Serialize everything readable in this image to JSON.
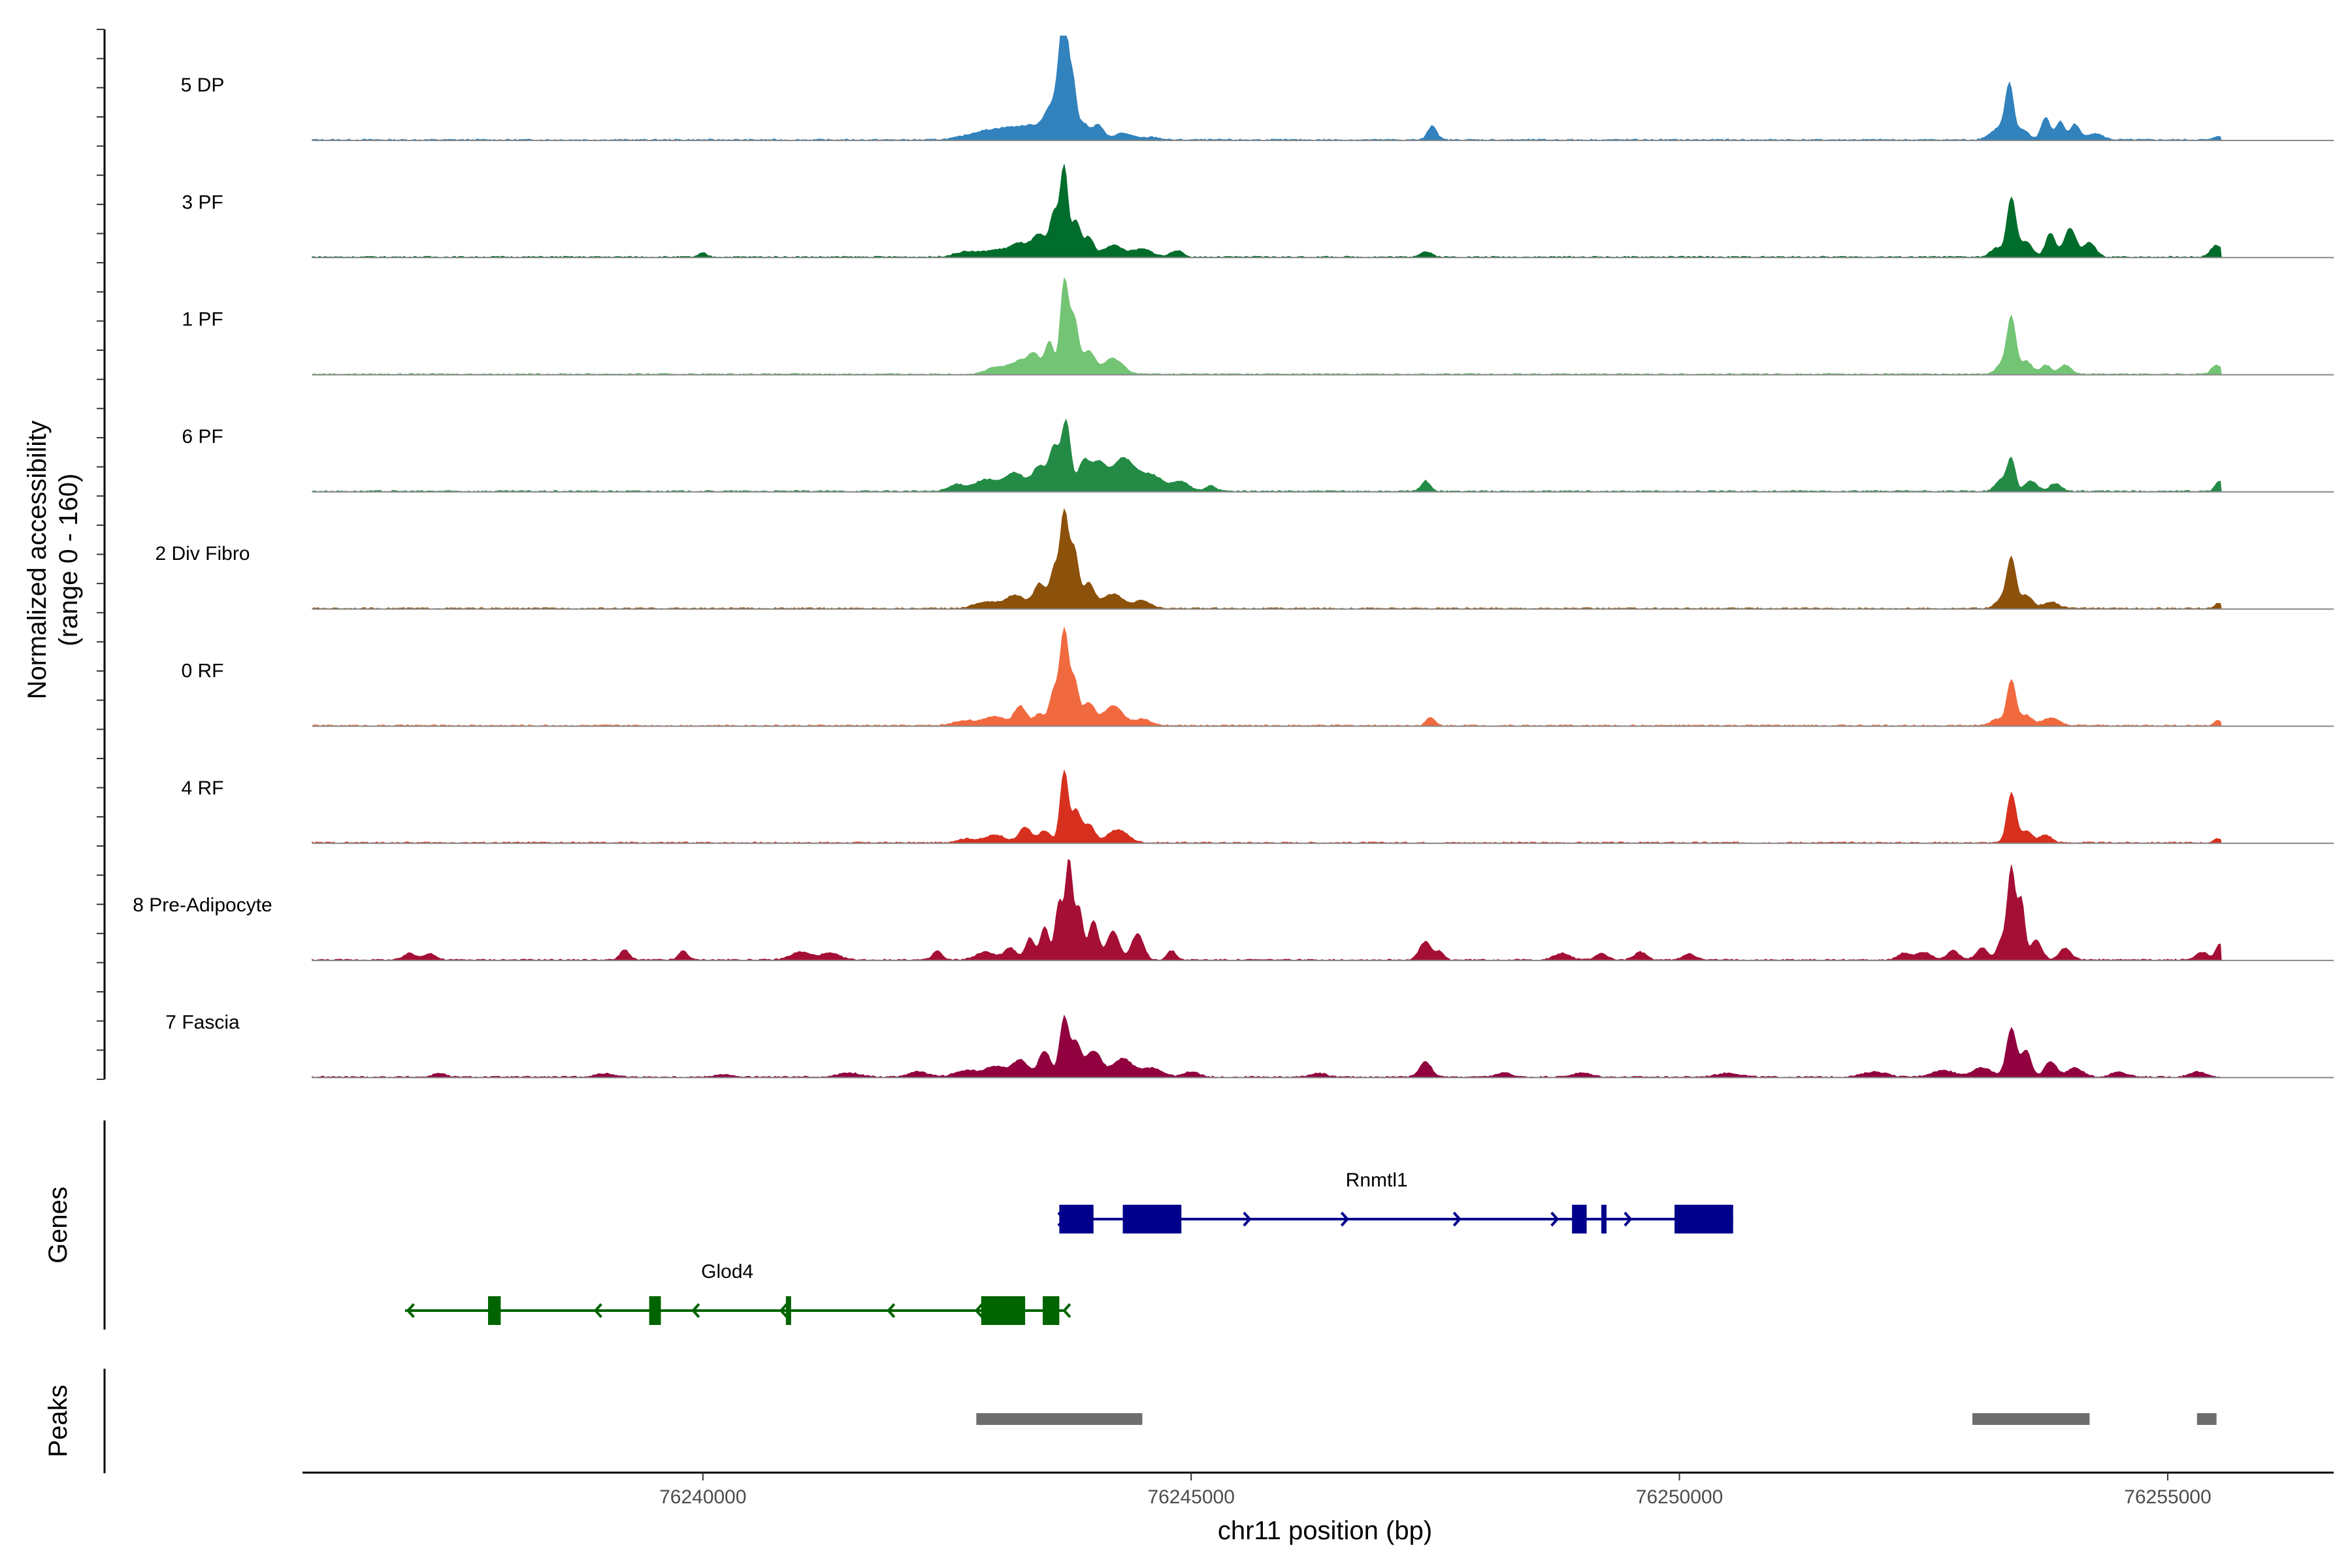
{
  "chart_data": {
    "type": "area",
    "title": "",
    "ylabel_lines": [
      "Normalized accessibility",
      "(range 0 - 160)"
    ],
    "y_range": [
      0,
      160
    ],
    "xlabel": "chr11 position (bp)",
    "x_range": [
      76235900,
      76256700
    ],
    "x_ticks": [
      76240000,
      76245000,
      76250000,
      76255000
    ],
    "x_tick_labels": [
      "76240000",
      "76245000",
      "76250000",
      "76255000"
    ],
    "track_area_x": [
      76236000,
      76255550
    ],
    "tracks": [
      {
        "name": "5 DP",
        "color": "#3182bd",
        "peaks": [
          [
            76242800,
            8,
            160
          ],
          [
            76243000,
            10,
            140
          ],
          [
            76243200,
            14,
            120
          ],
          [
            76243400,
            18,
            100
          ],
          [
            76243550,
            40,
            60
          ],
          [
            76243650,
            75,
            45
          ],
          [
            76243700,
            160,
            35
          ],
          [
            76243780,
            95,
            40
          ],
          [
            76243900,
            25,
            60
          ],
          [
            76244050,
            22,
            50
          ],
          [
            76244300,
            10,
            100
          ],
          [
            76244600,
            4,
            80
          ],
          [
            76247470,
            22,
            45
          ],
          [
            76253300,
            20,
            100
          ],
          [
            76253380,
            72,
            40
          ],
          [
            76253520,
            14,
            60
          ],
          [
            76253750,
            34,
            45
          ],
          [
            76253900,
            28,
            45
          ],
          [
            76254050,
            24,
            45
          ],
          [
            76254250,
            10,
            80
          ],
          [
            76255520,
            6,
            40
          ]
        ]
      },
      {
        "name": "3 PF",
        "color": "#006d2c",
        "peaks": [
          [
            76240000,
            6,
            40
          ],
          [
            76242700,
            8,
            120
          ],
          [
            76243000,
            10,
            120
          ],
          [
            76243250,
            20,
            100
          ],
          [
            76243450,
            32,
            70
          ],
          [
            76243600,
            65,
            45
          ],
          [
            76243700,
            135,
            38
          ],
          [
            76243820,
            55,
            45
          ],
          [
            76243950,
            30,
            50
          ],
          [
            76244200,
            18,
            100
          ],
          [
            76244500,
            12,
            100
          ],
          [
            76244850,
            10,
            60
          ],
          [
            76247400,
            8,
            60
          ],
          [
            76253250,
            14,
            60
          ],
          [
            76253400,
            90,
            45
          ],
          [
            76253550,
            24,
            60
          ],
          [
            76253800,
            36,
            50
          ],
          [
            76254000,
            44,
            60
          ],
          [
            76254200,
            22,
            60
          ],
          [
            76255500,
            18,
            60
          ]
        ]
      },
      {
        "name": "1 PF",
        "color": "#74c476",
        "peaks": [
          [
            76243000,
            10,
            100
          ],
          [
            76243250,
            20,
            100
          ],
          [
            76243400,
            26,
            60
          ],
          [
            76243550,
            50,
            45
          ],
          [
            76243700,
            140,
            40
          ],
          [
            76243800,
            85,
            45
          ],
          [
            76243950,
            35,
            60
          ],
          [
            76244200,
            24,
            100
          ],
          [
            76253300,
            14,
            60
          ],
          [
            76253400,
            85,
            45
          ],
          [
            76253550,
            20,
            60
          ],
          [
            76253750,
            14,
            50
          ],
          [
            76253950,
            14,
            60
          ],
          [
            76255500,
            14,
            50
          ]
        ]
      },
      {
        "name": "6 PF",
        "color": "#238b45",
        "peaks": [
          [
            76242600,
            10,
            80
          ],
          [
            76242900,
            18,
            120
          ],
          [
            76243200,
            28,
            100
          ],
          [
            76243450,
            38,
            70
          ],
          [
            76243600,
            65,
            50
          ],
          [
            76243720,
            105,
            45
          ],
          [
            76243900,
            45,
            60
          ],
          [
            76244050,
            40,
            70
          ],
          [
            76244300,
            50,
            120
          ],
          [
            76244600,
            24,
            120
          ],
          [
            76244900,
            14,
            80
          ],
          [
            76245200,
            8,
            60
          ],
          [
            76247400,
            16,
            45
          ],
          [
            76253300,
            18,
            60
          ],
          [
            76253400,
            48,
            40
          ],
          [
            76253600,
            16,
            60
          ],
          [
            76253850,
            12,
            60
          ],
          [
            76255530,
            16,
            40
          ]
        ]
      },
      {
        "name": "2 Div Fibro",
        "color": "#8c510a",
        "peaks": [
          [
            76242900,
            10,
            120
          ],
          [
            76243200,
            20,
            100
          ],
          [
            76243450,
            38,
            60
          ],
          [
            76243600,
            60,
            45
          ],
          [
            76243700,
            140,
            40
          ],
          [
            76243800,
            90,
            45
          ],
          [
            76243950,
            38,
            60
          ],
          [
            76244200,
            22,
            100
          ],
          [
            76244500,
            12,
            80
          ],
          [
            76253300,
            14,
            60
          ],
          [
            76253400,
            75,
            45
          ],
          [
            76253550,
            20,
            60
          ],
          [
            76253800,
            10,
            80
          ],
          [
            76255520,
            8,
            40
          ]
        ]
      },
      {
        "name": "0 RF",
        "color": "#f16a3f",
        "peaks": [
          [
            76242700,
            8,
            120
          ],
          [
            76243000,
            14,
            100
          ],
          [
            76243250,
            30,
            60
          ],
          [
            76243450,
            18,
            60
          ],
          [
            76243600,
            55,
            45
          ],
          [
            76243700,
            140,
            40
          ],
          [
            76243800,
            70,
            45
          ],
          [
            76243950,
            34,
            60
          ],
          [
            76244200,
            30,
            100
          ],
          [
            76244500,
            10,
            80
          ],
          [
            76247450,
            12,
            45
          ],
          [
            76253250,
            10,
            60
          ],
          [
            76253400,
            70,
            45
          ],
          [
            76253550,
            16,
            60
          ],
          [
            76253800,
            12,
            80
          ],
          [
            76255520,
            8,
            40
          ]
        ]
      },
      {
        "name": "4 RF",
        "color": "#d7301f",
        "peaks": [
          [
            76242700,
            6,
            100
          ],
          [
            76243000,
            12,
            100
          ],
          [
            76243300,
            24,
            60
          ],
          [
            76243500,
            18,
            60
          ],
          [
            76243700,
            110,
            40
          ],
          [
            76243820,
            48,
            45
          ],
          [
            76243950,
            28,
            60
          ],
          [
            76244250,
            20,
            100
          ],
          [
            76253400,
            76,
            45
          ],
          [
            76253550,
            18,
            60
          ],
          [
            76253750,
            12,
            60
          ],
          [
            76255520,
            6,
            40
          ]
        ]
      },
      {
        "name": "8 Pre-Adipocyte",
        "color": "#a50f35",
        "peaks": [
          [
            76237000,
            10,
            60
          ],
          [
            76237200,
            10,
            60
          ],
          [
            76239200,
            16,
            45
          ],
          [
            76239800,
            14,
            45
          ],
          [
            76241000,
            12,
            100
          ],
          [
            76241300,
            10,
            100
          ],
          [
            76242400,
            14,
            45
          ],
          [
            76242900,
            12,
            100
          ],
          [
            76243150,
            18,
            60
          ],
          [
            76243350,
            34,
            45
          ],
          [
            76243500,
            50,
            45
          ],
          [
            76243650,
            90,
            40
          ],
          [
            76243750,
            150,
            35
          ],
          [
            76243850,
            80,
            40
          ],
          [
            76244000,
            60,
            50
          ],
          [
            76244200,
            45,
            60
          ],
          [
            76244450,
            40,
            60
          ],
          [
            76244800,
            14,
            45
          ],
          [
            76247400,
            28,
            60
          ],
          [
            76247550,
            12,
            40
          ],
          [
            76248800,
            10,
            80
          ],
          [
            76249200,
            10,
            60
          ],
          [
            76249600,
            12,
            60
          ],
          [
            76250100,
            10,
            60
          ],
          [
            76252300,
            10,
            60
          ],
          [
            76252500,
            12,
            80
          ],
          [
            76252800,
            14,
            60
          ],
          [
            76253100,
            18,
            60
          ],
          [
            76253300,
            30,
            45
          ],
          [
            76253400,
            140,
            40
          ],
          [
            76253500,
            90,
            35
          ],
          [
            76253650,
            30,
            60
          ],
          [
            76253950,
            18,
            60
          ],
          [
            76255350,
            12,
            60
          ],
          [
            76255530,
            24,
            40
          ]
        ]
      },
      {
        "name": "7 Fascia",
        "color": "#91003f",
        "peaks": [
          [
            76237300,
            6,
            60
          ],
          [
            76239000,
            5,
            100
          ],
          [
            76240200,
            4,
            80
          ],
          [
            76241500,
            6,
            120
          ],
          [
            76242200,
            8,
            100
          ],
          [
            76242700,
            10,
            120
          ],
          [
            76243000,
            16,
            100
          ],
          [
            76243250,
            26,
            80
          ],
          [
            76243500,
            40,
            60
          ],
          [
            76243700,
            90,
            45
          ],
          [
            76243820,
            50,
            50
          ],
          [
            76244000,
            40,
            80
          ],
          [
            76244300,
            28,
            100
          ],
          [
            76244600,
            14,
            100
          ],
          [
            76245000,
            8,
            80
          ],
          [
            76246300,
            6,
            80
          ],
          [
            76247400,
            24,
            60
          ],
          [
            76248200,
            6,
            80
          ],
          [
            76249000,
            6,
            100
          ],
          [
            76250500,
            6,
            120
          ],
          [
            76252000,
            8,
            120
          ],
          [
            76252700,
            10,
            120
          ],
          [
            76253100,
            14,
            100
          ],
          [
            76253400,
            75,
            50
          ],
          [
            76253550,
            40,
            50
          ],
          [
            76253800,
            24,
            60
          ],
          [
            76254050,
            14,
            80
          ],
          [
            76254500,
            8,
            80
          ],
          [
            76255300,
            8,
            80
          ]
        ]
      }
    ],
    "genes": [
      {
        "name": "Rnmtl1",
        "color": "#00008b",
        "strand": "+",
        "span": [
          76243650,
          76250550
        ],
        "exons": [
          [
            76243650,
            76244000
          ],
          [
            76244300,
            76244900
          ],
          [
            76248900,
            76249050
          ],
          [
            76249200,
            76249250
          ],
          [
            76249950,
            76250550
          ]
        ],
        "arrows": [
          76243700,
          76245600,
          76246600,
          76247750,
          76248750,
          76249500
        ],
        "label_x": 76246900
      },
      {
        "name": "Glod4",
        "color": "#006400",
        "strand": "-",
        "span": [
          76236950,
          76243700
        ],
        "exons": [
          [
            76237800,
            76237930
          ],
          [
            76239450,
            76239570
          ],
          [
            76240850,
            76240900
          ],
          [
            76242850,
            76243300
          ],
          [
            76243480,
            76243650
          ]
        ],
        "arrows": [
          76236980,
          76238900,
          76239900,
          76240800,
          76241900,
          76242800,
          76243700
        ],
        "label_x": 76240250
      }
    ],
    "peaks_regions": [
      [
        76242800,
        76244500
      ],
      [
        76253000,
        76254200
      ],
      [
        76255300,
        76255500
      ]
    ],
    "panel_labels": {
      "genes": "Genes",
      "peaks": "Peaks"
    }
  }
}
